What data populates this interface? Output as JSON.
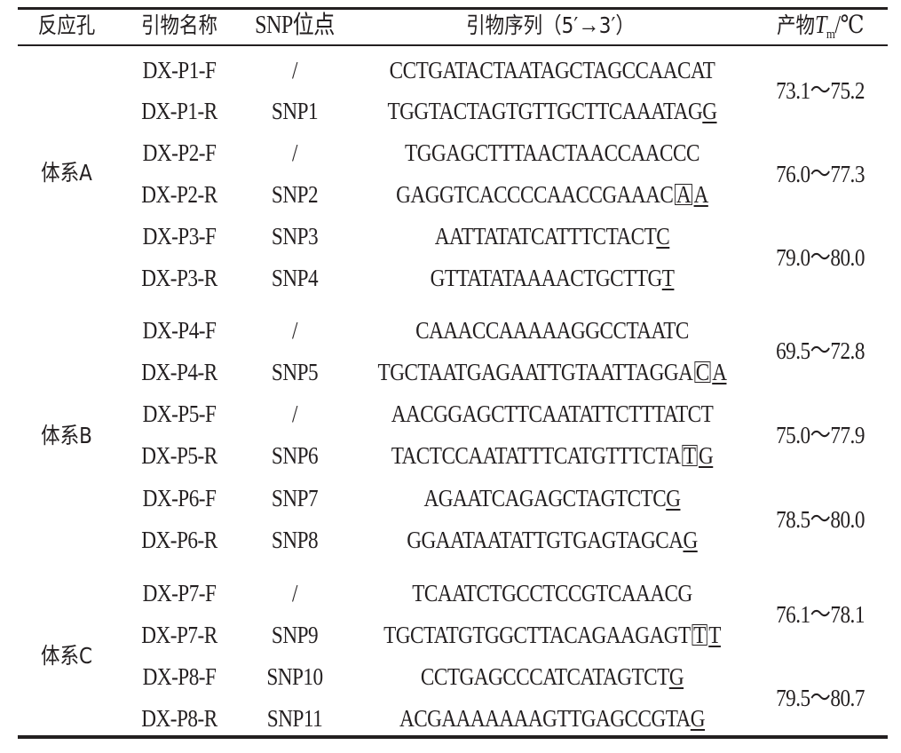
{
  "headers": {
    "well": "反应孔",
    "primer_name": "引物名称",
    "snp_site": "SNP位点",
    "seq_prefix": "引物序列（5′",
    "seq_arrow": "→",
    "seq_suffix": "3′）",
    "tm_prefix": "产物",
    "tm_T": "T",
    "tm_sub": "m",
    "tm_suffix": "/℃"
  },
  "systems": [
    {
      "label": "体系A"
    },
    {
      "label": "体系B"
    },
    {
      "label": "体系C"
    }
  ],
  "rows": [
    {
      "name": "DX-P1-F",
      "snp": "/",
      "seq_main": "CCTGATACTAATAGCTAGCCAACAT",
      "seq_box": "",
      "seq_end": ""
    },
    {
      "name": "DX-P1-R",
      "snp": "SNP1",
      "seq_main": "TGGTACTAGTGTTGCTTCAAATAG",
      "seq_box": "",
      "seq_end": "G"
    },
    {
      "name": "DX-P2-F",
      "snp": "/",
      "seq_main": "TGGAGCTTTAACTAACCAACCC",
      "seq_box": "",
      "seq_end": ""
    },
    {
      "name": "DX-P2-R",
      "snp": "SNP2",
      "seq_main": "GAGGTCACCCCAACCGAAAC",
      "seq_box": "A",
      "seq_end": "A"
    },
    {
      "name": "DX-P3-F",
      "snp": "SNP3",
      "seq_main": "AATTATATCATTTCTACT",
      "seq_box": "",
      "seq_end": "C"
    },
    {
      "name": "DX-P3-R",
      "snp": "SNP4",
      "seq_main": "GTTATATAAAACTGCTTG",
      "seq_box": "",
      "seq_end": "T"
    },
    {
      "name": "DX-P4-F",
      "snp": "/",
      "seq_main": "CAAACCAAAAAGGCCTAATC",
      "seq_box": "",
      "seq_end": ""
    },
    {
      "name": "DX-P4-R",
      "snp": "SNP5",
      "seq_main": "TGCTAATGAGAATTGTAATTAGGA",
      "seq_box": "C",
      "seq_end": "A"
    },
    {
      "name": "DX-P5-F",
      "snp": "/",
      "seq_main": "AACGGAGCTTCAATATTCTTTATCT",
      "seq_box": "",
      "seq_end": ""
    },
    {
      "name": "DX-P5-R",
      "snp": "SNP6",
      "seq_main": "TACTCCAATATTTCATGTTTCTA",
      "seq_box": "T",
      "seq_end": "G"
    },
    {
      "name": "DX-P6-F",
      "snp": "SNP7",
      "seq_main": "AGAATCAGAGCTAGTCTC",
      "seq_box": "",
      "seq_end": "G"
    },
    {
      "name": "DX-P6-R",
      "snp": "SNP8",
      "seq_main": "GGAATAATATTGTGAGTAGCA",
      "seq_box": "",
      "seq_end": "G"
    },
    {
      "name": "DX-P7-F",
      "snp": "/",
      "seq_main": "TCAATCTGCCTCCGTCAAACG",
      "seq_box": "",
      "seq_end": ""
    },
    {
      "name": "DX-P7-R",
      "snp": "SNP9",
      "seq_main": "TGCTATGTGGCTTACAGAAGAGT",
      "seq_box": "T",
      "seq_end": "T"
    },
    {
      "name": "DX-P8-F",
      "snp": "SNP10",
      "seq_main": "CCTGAGCCCATCATAGTCT",
      "seq_box": "",
      "seq_end": "G"
    },
    {
      "name": "DX-P8-R",
      "snp": "SNP11",
      "seq_main": "ACGAAAAAAAGTTGAGCCGTA",
      "seq_box": "",
      "seq_end": "G"
    }
  ],
  "tm": [
    {
      "value": "73.1～75.2"
    },
    {
      "value": "76.0～77.3"
    },
    {
      "value": "79.0～80.0"
    },
    {
      "value": "69.5～72.8"
    },
    {
      "value": "75.0～77.9"
    },
    {
      "value": "78.5～80.0"
    },
    {
      "value": "76.1～78.1"
    },
    {
      "value": "79.5～80.7"
    }
  ]
}
